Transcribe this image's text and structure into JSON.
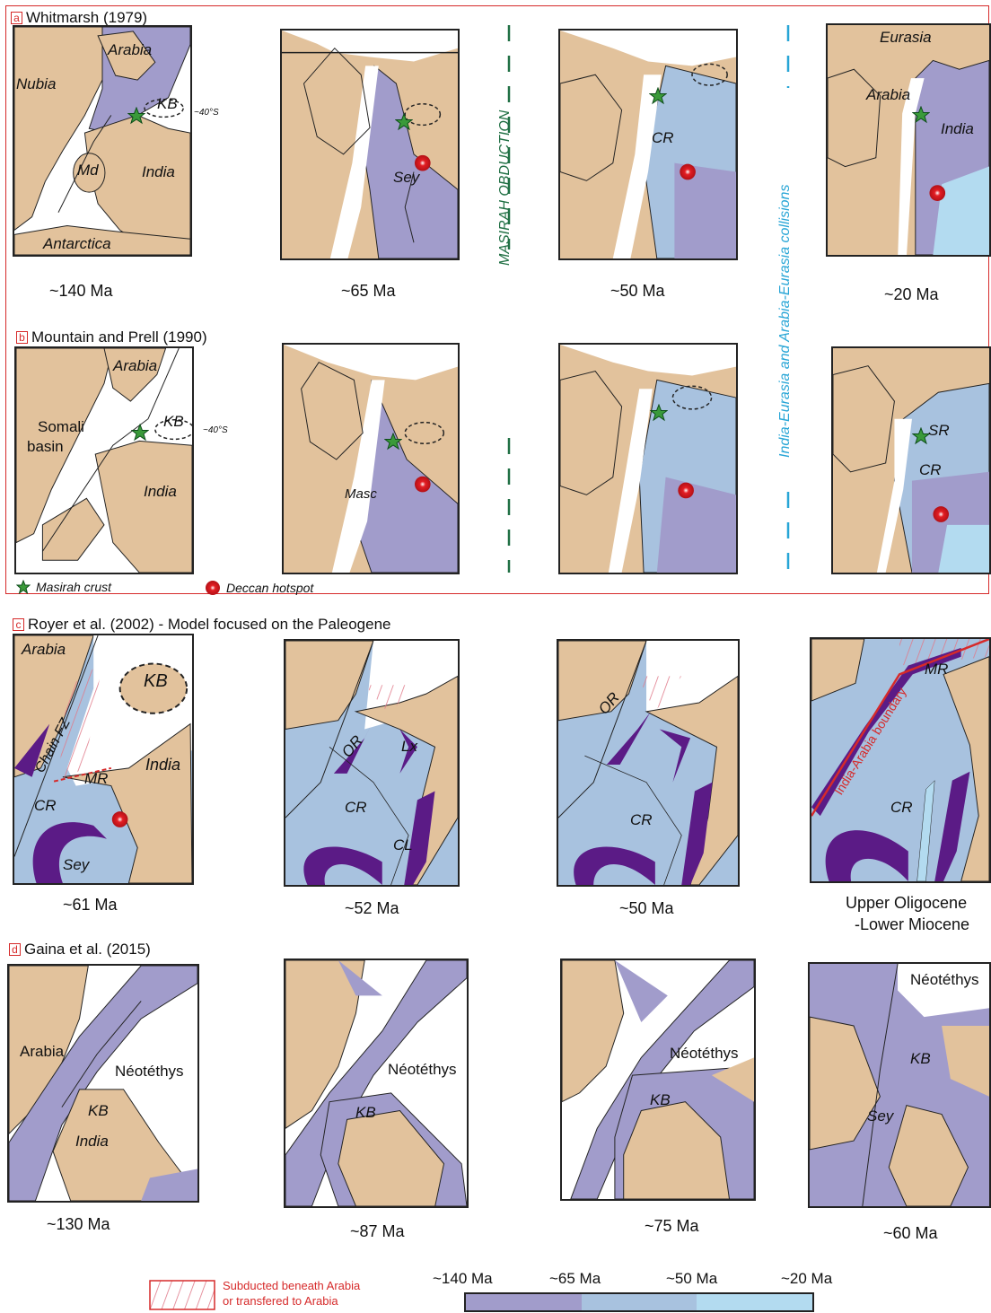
{
  "colors": {
    "land": "#e2c29c",
    "ocean_old": "#a19ccb",
    "ocean_mid": "#a8c2df",
    "ocean_young": "#b3dbf0",
    "oceanic_dark": "#5b1b86",
    "frame_red": "#d62a2a",
    "masirah_green": "#1f6f43",
    "collision_blue": "#27a5d6",
    "hotspot_red": "#e31e24"
  },
  "section_a": {
    "tag": "a",
    "title": "Whitmarsh (1979)",
    "ages": [
      "~140 Ma",
      "~65 Ma",
      "~50 Ma",
      "~20 Ma"
    ],
    "labels": {
      "arabia": "Arabia",
      "nubia": "Nubia",
      "kb": "KB",
      "md": "Md",
      "india": "India",
      "antarctica": "Antarctica",
      "lat": "~40°S",
      "sey": "Sey",
      "cr": "CR",
      "eurasia": "Eurasia"
    }
  },
  "section_b": {
    "tag": "b",
    "title": "Mountain and Prell (1990)",
    "labels": {
      "arabia": "Arabia",
      "somali": "Somali",
      "basin": "basin",
      "kb": "KB",
      "india": "India",
      "lat": "~40°S",
      "masc": "Masc",
      "sr": "SR",
      "cr": "CR"
    }
  },
  "vertical": {
    "masirah": "MASIRAH OBDUCTION",
    "collisions": "India-Eurasia and Arabia-Eurasia collisions"
  },
  "legend_top": {
    "masirah_crust": "Masirah crust",
    "deccan_hotspot": "Deccan hotspot"
  },
  "section_c": {
    "tag": "c",
    "title": "Royer et al. (2002) - Model focused on the Paleogene",
    "ages": [
      "~61 Ma",
      "~52 Ma",
      "~50 Ma",
      "Upper Oligocene",
      "-Lower Miocene"
    ],
    "labels": {
      "arabia": "Arabia",
      "kb": "KB",
      "chain": "Chain FZ",
      "india": "India",
      "mr": "MR",
      "cr": "CR",
      "sey": "Sey",
      "or": "OR",
      "lx": "Lx",
      "cl": "CL",
      "boundary": "India-Arabia boundary"
    }
  },
  "section_d": {
    "tag": "d",
    "title": "Gaina et al. (2015)",
    "ages": [
      "~130 Ma",
      "~87 Ma",
      "~75 Ma",
      "~60 Ma"
    ],
    "labels": {
      "arabia": "Arabia",
      "neotethys": "Néotéthys",
      "kb": "KB",
      "india": "India",
      "sey": "Sey"
    }
  },
  "legend_bottom": {
    "subducted_line1": "Subducted beneath Arabia",
    "subducted_line2": "or transfered to Arabia",
    "age_ticks": [
      "~140 Ma",
      "~65 Ma",
      "~50 Ma",
      "~20 Ma"
    ]
  }
}
